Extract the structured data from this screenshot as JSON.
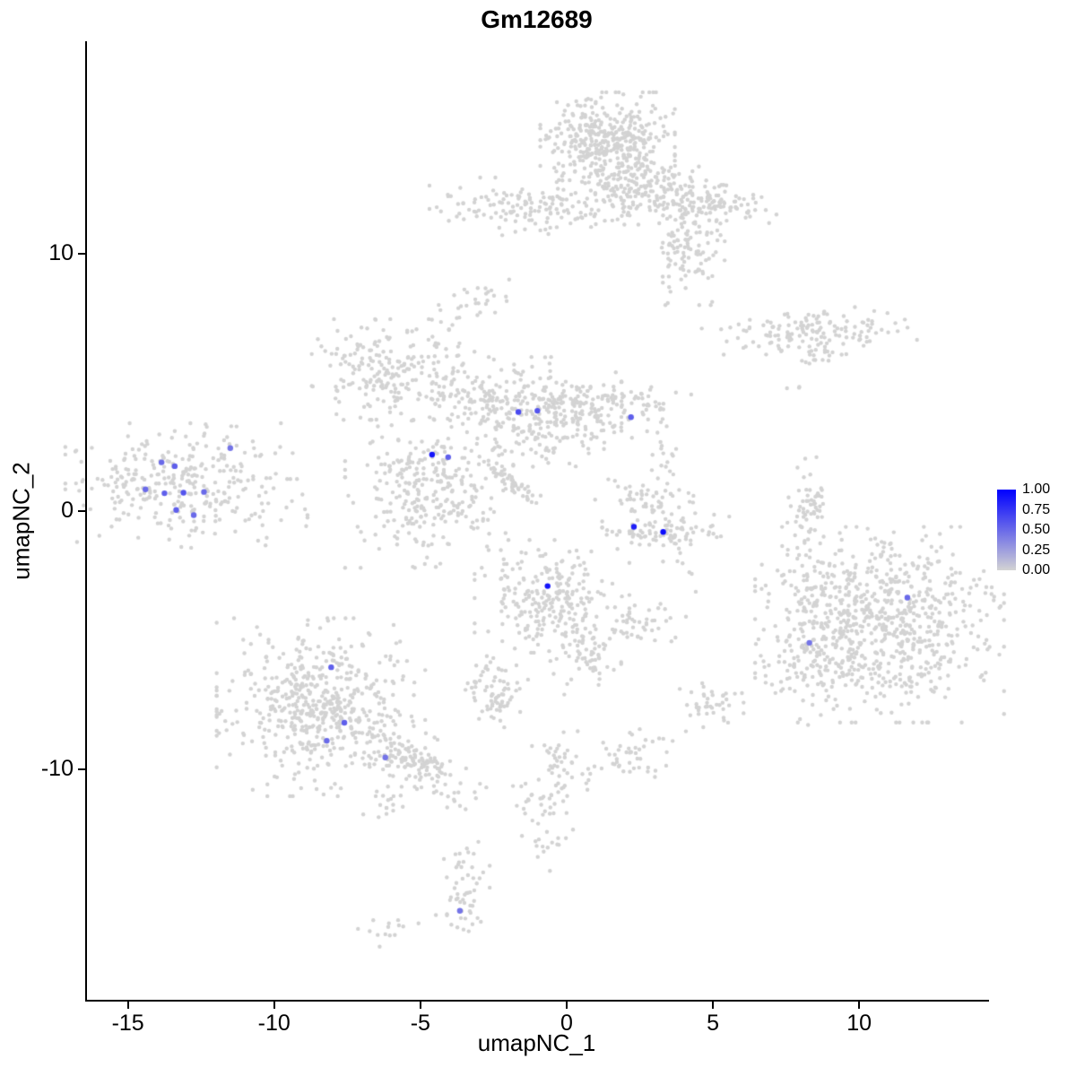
{
  "chart_data": {
    "type": "scatter",
    "title": "Gm12689",
    "xlabel": "umapNC_1",
    "ylabel": "umapNC_2",
    "xlim": [
      -16.4,
      14.35
    ],
    "ylim": [
      -18.95,
      18.2
    ],
    "x_ticks": [
      -15,
      -10,
      -5,
      0,
      5,
      10
    ],
    "y_ticks": [
      10,
      0,
      -10
    ],
    "grid": false,
    "background_color": "#FFFFFF",
    "point_color": "#D3D3D3",
    "legend": {
      "position": "right",
      "labels": [
        "1.00",
        "0.75",
        "0.50",
        "0.25",
        "0.00"
      ],
      "high_color": "#0000FF",
      "low_color": "#D3D3D3"
    },
    "clusters": [
      {
        "cx": 1.4,
        "cy": 14.3,
        "sx": 1.0,
        "sy": 0.85,
        "n": 420
      },
      {
        "cx": 2.6,
        "cy": 12.5,
        "sx": 1.3,
        "sy": 0.6,
        "n": 170
      },
      {
        "cx": 5.0,
        "cy": 11.9,
        "sx": 1.0,
        "sy": 0.35,
        "n": 90,
        "rot": -8
      },
      {
        "cx": 4.2,
        "cy": 10.3,
        "sx": 0.55,
        "sy": 1.0,
        "n": 120
      },
      {
        "cx": -1.7,
        "cy": 11.8,
        "sx": 1.3,
        "sy": 0.5,
        "n": 120
      },
      {
        "cx": 0.5,
        "cy": 11.5,
        "sx": 0.35,
        "sy": 0.2,
        "n": 12
      },
      {
        "cx": 8.3,
        "cy": 7.0,
        "sx": 1.6,
        "sy": 0.4,
        "n": 140
      },
      {
        "cx": 8.7,
        "cy": 6.1,
        "sx": 0.35,
        "sy": 0.3,
        "n": 18
      },
      {
        "cx": -6.3,
        "cy": 5.5,
        "sx": 1.05,
        "sy": 0.85,
        "n": 170
      },
      {
        "cx": -4.3,
        "cy": 6.3,
        "sx": 0.5,
        "sy": 1.0,
        "n": 45
      },
      {
        "cx": -3.0,
        "cy": 8.3,
        "sx": 0.45,
        "sy": 0.3,
        "n": 22
      },
      {
        "cx": -3.6,
        "cy": 4.4,
        "sx": 1.0,
        "sy": 0.45,
        "n": 70
      },
      {
        "cx": -1.0,
        "cy": 3.8,
        "sx": 1.25,
        "sy": 0.95,
        "n": 270
      },
      {
        "cx": 1.5,
        "cy": 4.0,
        "sx": 1.2,
        "sy": 0.5,
        "n": 120
      },
      {
        "cx": -4.7,
        "cy": 0.8,
        "sx": 1.25,
        "sy": 1.3,
        "n": 300
      },
      {
        "cx": -1.9,
        "cy": 1.1,
        "sx": 0.8,
        "sy": 0.14,
        "n": 55,
        "rot": -41
      },
      {
        "cx": -13.0,
        "cy": 1.0,
        "sx": 1.8,
        "sy": 1.05,
        "n": 320
      },
      {
        "cx": 2.7,
        "cy": 0.4,
        "sx": 0.75,
        "sy": 0.55,
        "n": 65
      },
      {
        "cx": 3.4,
        "cy": -0.8,
        "sx": 0.95,
        "sy": 0.3,
        "n": 75
      },
      {
        "cx": 3.5,
        "cy": 1.9,
        "sx": 0.35,
        "sy": 0.5,
        "n": 14
      },
      {
        "cx": 8.1,
        "cy": -0.2,
        "sx": 0.3,
        "sy": 1.0,
        "n": 50
      },
      {
        "cx": 8.6,
        "cy": 0.5,
        "sx": 0.15,
        "sy": 0.5,
        "n": 14
      },
      {
        "cx": -0.5,
        "cy": -3.3,
        "sx": 1.15,
        "sy": 0.95,
        "n": 240
      },
      {
        "cx": 0.6,
        "cy": -5.5,
        "sx": 0.55,
        "sy": 0.7,
        "n": 70
      },
      {
        "cx": 10.7,
        "cy": -4.4,
        "sx": 1.85,
        "sy": 1.65,
        "n": 750
      },
      {
        "cx": 8.4,
        "cy": -5.3,
        "sx": 0.55,
        "sy": 1.3,
        "n": 100
      },
      {
        "cx": 9.0,
        "cy": -2.6,
        "sx": 0.5,
        "sy": 0.5,
        "n": 25
      },
      {
        "cx": -8.4,
        "cy": -7.6,
        "sx": 1.55,
        "sy": 1.5,
        "n": 540
      },
      {
        "cx": -5.2,
        "cy": -9.7,
        "sx": 1.1,
        "sy": 0.5,
        "n": 150,
        "rot": -40
      },
      {
        "cx": -6.3,
        "cy": -11.3,
        "sx": 0.4,
        "sy": 0.3,
        "n": 15
      },
      {
        "cx": -2.45,
        "cy": -7.0,
        "sx": 0.55,
        "sy": 0.6,
        "n": 75
      },
      {
        "cx": 2.7,
        "cy": -4.4,
        "sx": 0.6,
        "sy": 0.35,
        "n": 38
      },
      {
        "cx": 4.9,
        "cy": -7.5,
        "sx": 0.5,
        "sy": 0.45,
        "n": 42
      },
      {
        "cx": -0.4,
        "cy": -9.9,
        "sx": 0.5,
        "sy": 0.7,
        "n": 45
      },
      {
        "cx": -0.8,
        "cy": -11.9,
        "sx": 0.45,
        "sy": 0.9,
        "n": 40
      },
      {
        "cx": 1.9,
        "cy": -9.6,
        "sx": 0.75,
        "sy": 0.5,
        "n": 48
      },
      {
        "cx": -3.55,
        "cy": -14.6,
        "sx": 0.4,
        "sy": 1.0,
        "n": 55
      },
      {
        "cx": -6.1,
        "cy": -16.2,
        "sx": 0.45,
        "sy": 0.3,
        "n": 14
      },
      {
        "cx": 7.8,
        "cy": 4.8,
        "sx": 0.15,
        "sy": 0.15,
        "n": 3
      },
      {
        "cx": 4.1,
        "cy": -2.1,
        "sx": 0.35,
        "sy": 0.6,
        "n": 10
      }
    ],
    "expressing_cells": [
      {
        "x": -11.5,
        "y": 2.45,
        "value": 0.45
      },
      {
        "x": -13.85,
        "y": 1.9,
        "value": 0.5
      },
      {
        "x": -13.4,
        "y": 1.75,
        "value": 0.55
      },
      {
        "x": -14.4,
        "y": 0.85,
        "value": 0.5
      },
      {
        "x": -13.75,
        "y": 0.7,
        "value": 0.55
      },
      {
        "x": -13.1,
        "y": 0.72,
        "value": 0.6
      },
      {
        "x": -12.4,
        "y": 0.75,
        "value": 0.5
      },
      {
        "x": -13.35,
        "y": 0.05,
        "value": 0.55
      },
      {
        "x": -12.75,
        "y": -0.15,
        "value": 0.5
      },
      {
        "x": -4.6,
        "y": 2.2,
        "value": 0.9
      },
      {
        "x": -4.05,
        "y": 2.1,
        "value": 0.55
      },
      {
        "x": -1.65,
        "y": 3.85,
        "value": 0.65
      },
      {
        "x": -1.0,
        "y": 3.9,
        "value": 0.6
      },
      {
        "x": 2.2,
        "y": 3.65,
        "value": 0.55
      },
      {
        "x": 2.3,
        "y": -0.6,
        "value": 0.85
      },
      {
        "x": 3.3,
        "y": -0.8,
        "value": 0.95
      },
      {
        "x": -0.65,
        "y": -2.9,
        "value": 0.9
      },
      {
        "x": 11.65,
        "y": -3.35,
        "value": 0.5
      },
      {
        "x": 8.3,
        "y": -5.1,
        "value": 0.45
      },
      {
        "x": -8.05,
        "y": -6.05,
        "value": 0.55
      },
      {
        "x": -7.6,
        "y": -8.2,
        "value": 0.55
      },
      {
        "x": -8.2,
        "y": -8.9,
        "value": 0.5
      },
      {
        "x": -6.2,
        "y": -9.55,
        "value": 0.45
      },
      {
        "x": -3.65,
        "y": -15.5,
        "value": 0.45
      }
    ]
  }
}
